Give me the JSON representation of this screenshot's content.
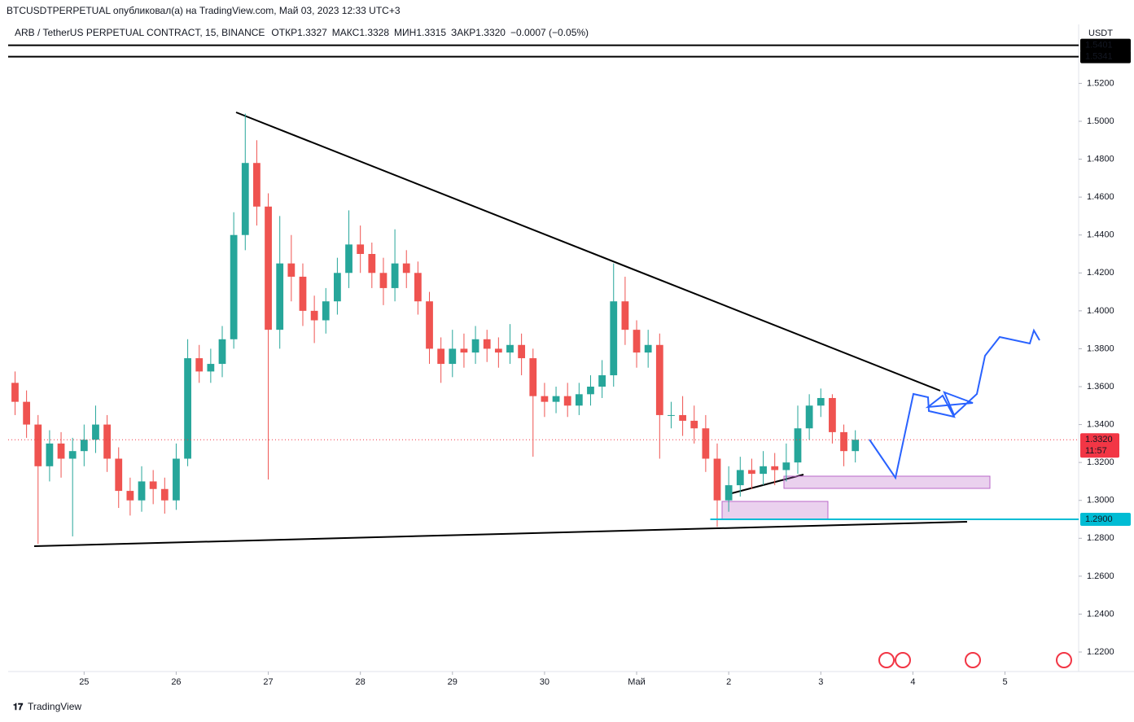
{
  "header": {
    "published": "BTCUSDTPERPETUAL опубликовал(а) на TradingView.com, Май 03, 2023 12:33 UTC+3",
    "symbol": "ARB / TetherUS PERPETUAL CONTRACT, 15, BINANCE",
    "ohlc": [
      {
        "label": "ОТКР",
        "value": "1.3327"
      },
      {
        "label": "МАКС",
        "value": "1.3328"
      },
      {
        "label": "МИН",
        "value": "1.3315"
      },
      {
        "label": "ЗАКР",
        "value": "1.3320"
      }
    ],
    "change": "−0.0007 (−0.05%)"
  },
  "footer": {
    "logo": "TradingView"
  },
  "chart_data": {
    "type": "candlestick",
    "unit": "USDT",
    "up_color": "#26a69a",
    "down_color": "#ef5350",
    "grid": false,
    "xlim": [
      24.175,
      35.8
    ],
    "ylim": [
      1.2097,
      1.5511
    ],
    "xticks": [
      25,
      26,
      27,
      28,
      29,
      30,
      {
        "value": 31,
        "label": "Май"
      },
      {
        "value": 32,
        "label": "2"
      },
      {
        "value": 33,
        "label": "3"
      },
      {
        "value": 34,
        "label": "4"
      },
      {
        "value": 35,
        "label": "5"
      }
    ],
    "yticks": [
      {
        "value": 1.22,
        "label": "1.2200"
      },
      {
        "value": 1.24,
        "label": "1.2400"
      },
      {
        "value": 1.26,
        "label": "1.2600"
      },
      {
        "value": 1.28,
        "label": "1.2800"
      },
      {
        "value": 1.3,
        "label": "1.3000"
      },
      {
        "value": 1.32,
        "label": "1.3200"
      },
      {
        "value": 1.34,
        "label": "1.3400"
      },
      {
        "value": 1.36,
        "label": "1.3600"
      },
      {
        "value": 1.38,
        "label": "1.3800"
      },
      {
        "value": 1.4,
        "label": "1.4000"
      },
      {
        "value": 1.42,
        "label": "1.4200"
      },
      {
        "value": 1.44,
        "label": "1.4400"
      },
      {
        "value": 1.46,
        "label": "1.4600"
      },
      {
        "value": 1.48,
        "label": "1.4800"
      },
      {
        "value": 1.5,
        "label": "1.5000"
      },
      {
        "value": 1.52,
        "label": "1.5200"
      }
    ],
    "x": [
      24.25,
      24.375,
      24.5,
      24.625,
      24.75,
      24.875,
      25,
      25.125,
      25.25,
      25.375,
      25.5,
      25.625,
      25.75,
      25.875,
      26,
      26.125,
      26.25,
      26.375,
      26.5,
      26.625,
      26.75,
      26.875,
      27,
      27.125,
      27.25,
      27.375,
      27.5,
      27.625,
      27.75,
      27.875,
      28,
      28.125,
      28.25,
      28.375,
      28.5,
      28.625,
      28.75,
      28.875,
      29,
      29.125,
      29.25,
      29.375,
      29.5,
      29.625,
      29.75,
      29.875,
      30,
      30.125,
      30.25,
      30.375,
      30.5,
      30.625,
      30.75,
      30.875,
      31,
      31.125,
      31.25,
      31.375,
      31.5,
      31.625,
      31.75,
      31.875,
      32,
      32.125,
      32.25,
      32.375,
      32.5,
      32.625,
      32.75,
      32.875,
      33,
      33.125,
      33.25,
      33.375
    ],
    "open": [
      1.362,
      1.352,
      1.34,
      1.318,
      1.33,
      1.322,
      1.326,
      1.332,
      1.34,
      1.322,
      1.305,
      1.3,
      1.31,
      1.306,
      1.3,
      1.322,
      1.375,
      1.368,
      1.372,
      1.385,
      1.44,
      1.478,
      1.455,
      1.39,
      1.425,
      1.418,
      1.4,
      1.395,
      1.405,
      1.42,
      1.435,
      1.43,
      1.42,
      1.412,
      1.425,
      1.42,
      1.405,
      1.38,
      1.372,
      1.38,
      1.378,
      1.385,
      1.38,
      1.378,
      1.382,
      1.375,
      1.355,
      1.352,
      1.355,
      1.35,
      1.356,
      1.36,
      1.366,
      1.405,
      1.39,
      1.378,
      1.382,
      1.345,
      1.345,
      1.342,
      1.338,
      1.322,
      1.3,
      1.308,
      1.316,
      1.314,
      1.318,
      1.316,
      1.32,
      1.338,
      1.35,
      1.354,
      1.336,
      1.326
    ],
    "high": [
      1.368,
      1.358,
      1.345,
      1.337,
      1.336,
      1.333,
      1.34,
      1.35,
      1.345,
      1.328,
      1.312,
      1.318,
      1.316,
      1.312,
      1.33,
      1.385,
      1.382,
      1.38,
      1.392,
      1.452,
      1.504,
      1.49,
      1.462,
      1.45,
      1.44,
      1.425,
      1.408,
      1.412,
      1.428,
      1.453,
      1.445,
      1.436,
      1.428,
      1.443,
      1.432,
      1.426,
      1.41,
      1.386,
      1.39,
      1.388,
      1.392,
      1.39,
      1.386,
      1.393,
      1.388,
      1.38,
      1.362,
      1.36,
      1.362,
      1.362,
      1.366,
      1.374,
      1.425,
      1.418,
      1.395,
      1.39,
      1.388,
      1.352,
      1.355,
      1.35,
      1.345,
      1.33,
      1.318,
      1.323,
      1.322,
      1.326,
      1.325,
      1.33,
      1.35,
      1.356,
      1.359,
      1.356,
      1.34,
      1.337
    ],
    "low": [
      1.345,
      1.333,
      1.277,
      1.31,
      1.312,
      1.281,
      1.318,
      1.325,
      1.315,
      1.296,
      1.292,
      1.294,
      1.298,
      1.293,
      1.295,
      1.318,
      1.362,
      1.362,
      1.365,
      1.38,
      1.432,
      1.445,
      1.311,
      1.38,
      1.405,
      1.392,
      1.383,
      1.388,
      1.398,
      1.412,
      1.42,
      1.412,
      1.403,
      1.405,
      1.412,
      1.398,
      1.372,
      1.362,
      1.365,
      1.37,
      1.372,
      1.373,
      1.37,
      1.372,
      1.366,
      1.323,
      1.344,
      1.346,
      1.344,
      1.345,
      1.35,
      1.354,
      1.36,
      1.382,
      1.37,
      1.37,
      1.322,
      1.338,
      1.334,
      1.33,
      1.315,
      1.286,
      1.294,
      1.302,
      1.306,
      1.308,
      1.308,
      1.31,
      1.314,
      1.332,
      1.344,
      1.33,
      1.318,
      1.32
    ],
    "close": [
      1.352,
      1.34,
      1.318,
      1.33,
      1.322,
      1.326,
      1.332,
      1.34,
      1.322,
      1.305,
      1.3,
      1.31,
      1.306,
      1.3,
      1.322,
      1.375,
      1.368,
      1.372,
      1.385,
      1.44,
      1.478,
      1.455,
      1.39,
      1.425,
      1.418,
      1.4,
      1.395,
      1.405,
      1.42,
      1.435,
      1.43,
      1.42,
      1.412,
      1.425,
      1.42,
      1.405,
      1.38,
      1.372,
      1.38,
      1.378,
      1.385,
      1.38,
      1.378,
      1.382,
      1.375,
      1.355,
      1.352,
      1.355,
      1.35,
      1.356,
      1.36,
      1.366,
      1.405,
      1.39,
      1.378,
      1.382,
      1.345,
      1.345,
      1.342,
      1.338,
      1.322,
      1.3,
      1.308,
      1.316,
      1.314,
      1.318,
      1.316,
      1.32,
      1.338,
      1.35,
      1.354,
      1.336,
      1.326,
      1.332
    ],
    "price_lines": [
      {
        "value": 1.5401,
        "label": "1.5401",
        "color": "#000000"
      },
      {
        "value": 1.5341,
        "label": "1.5341",
        "color": "#000000"
      },
      {
        "value": 1.29,
        "label": "1.2900",
        "color": "#00bcd4"
      }
    ],
    "last_price": {
      "value": 1.332,
      "label": "1.3320",
      "countdown": "11:57",
      "color": "#f23645"
    }
  }
}
